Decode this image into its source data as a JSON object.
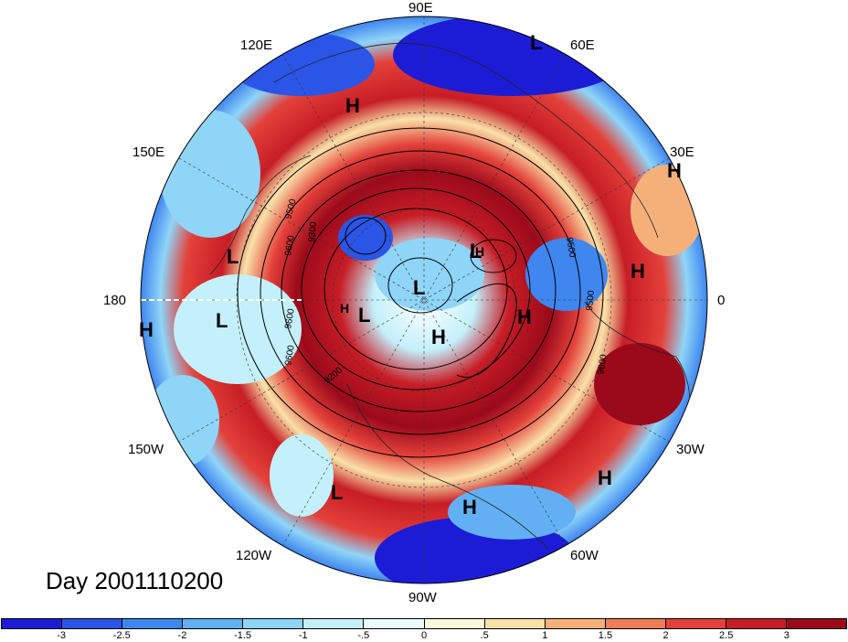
{
  "title": "Day 2001110200",
  "longitude_labels": [
    "90E",
    "60E",
    "30E",
    "0",
    "30W",
    "60W",
    "90W",
    "120W",
    "150W",
    "180",
    "150E",
    "120E"
  ],
  "pressure_contour_labels": [
    "9500",
    "9600",
    "9300",
    "9500",
    "9600",
    "9200",
    "9600",
    "9600",
    "9500"
  ],
  "highs_lows": [
    "L",
    "H",
    "H",
    "L",
    "H",
    "L",
    "L",
    "L",
    "L",
    "H",
    "H",
    "H",
    "L",
    "H",
    "H",
    "H",
    "H"
  ],
  "colorbar": {
    "colors": [
      "#1c1cd6",
      "#2a55e6",
      "#3f86ef",
      "#62b0f3",
      "#8fd5f8",
      "#c4f0fb",
      "#eafcfc",
      "#fdf7dc",
      "#f9e1a8",
      "#f5b07a",
      "#ef7c58",
      "#e3413a",
      "#c71d26",
      "#9b0a1b"
    ],
    "tick_labels": [
      "-3",
      "-2.5",
      "-2",
      "-1.5",
      "-1",
      "-.5",
      "0",
      ".5",
      "1",
      "1.5",
      "2",
      "2.5",
      "3"
    ]
  },
  "map": {
    "projection": "north-polar-stereographic",
    "ocean_background": "#ffffff",
    "contour_color": "#000000"
  }
}
